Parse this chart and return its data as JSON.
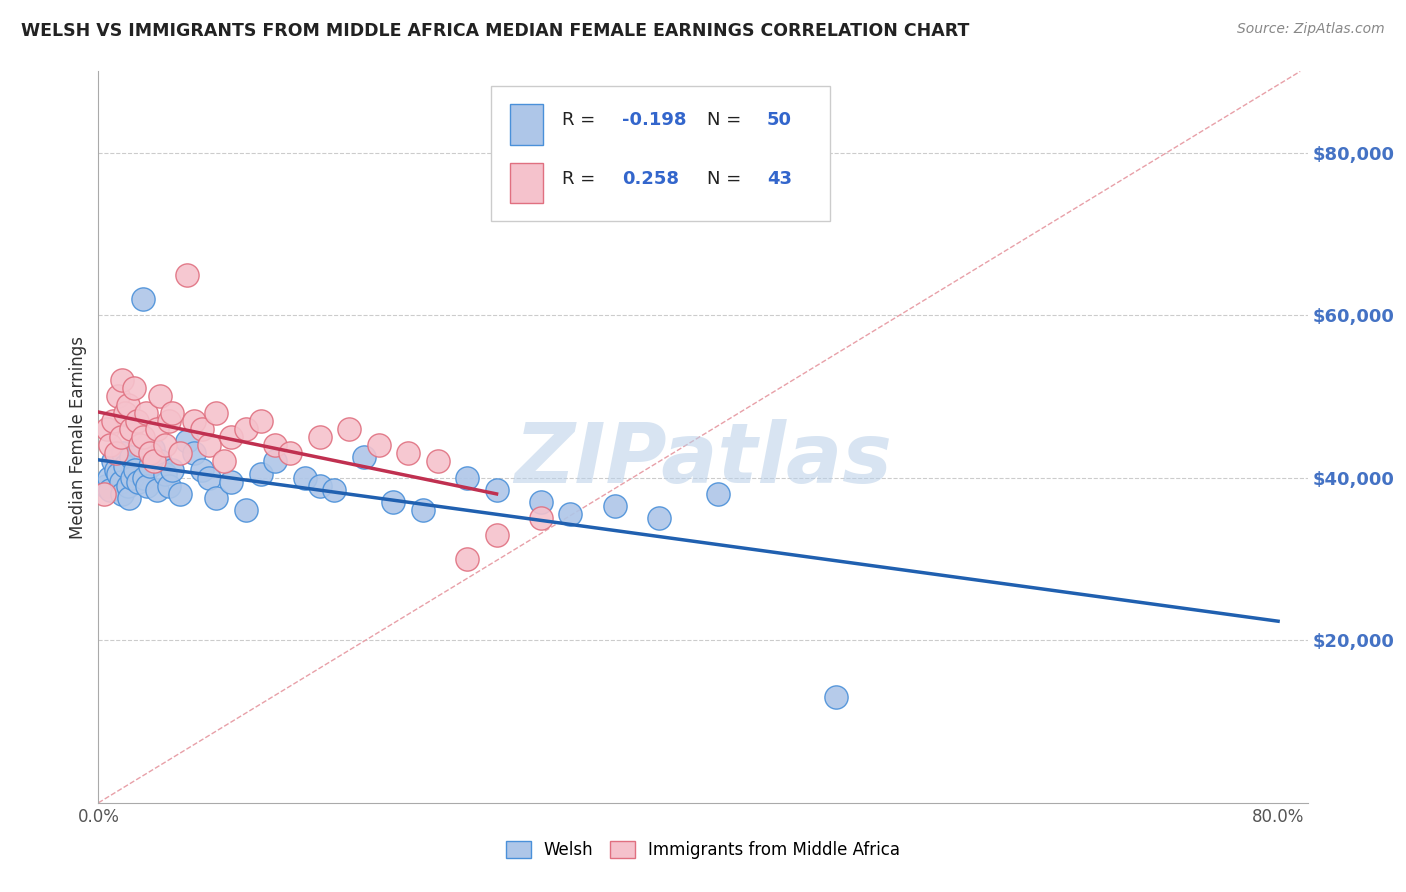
{
  "title": "WELSH VS IMMIGRANTS FROM MIDDLE AFRICA MEDIAN FEMALE EARNINGS CORRELATION CHART",
  "source": "Source: ZipAtlas.com",
  "ylabel": "Median Female Earnings",
  "y_ticks": [
    20000,
    40000,
    60000,
    80000
  ],
  "y_tick_labels": [
    "$20,000",
    "$40,000",
    "$60,000",
    "$80,000"
  ],
  "xlim": [
    0.0,
    0.8
  ],
  "ylim": [
    0,
    90000
  ],
  "welsh_color": "#aec6e8",
  "welsh_edge_color": "#4a90d9",
  "immigrant_color": "#f5c2cc",
  "immigrant_edge_color": "#e07080",
  "welsh_R": -0.198,
  "welsh_N": 50,
  "immigrant_R": 0.258,
  "immigrant_N": 43,
  "legend_label_welsh": "Welsh",
  "legend_label_immigrant": "Immigrants from Middle Africa",
  "watermark": "ZIPatlas",
  "welsh_scatter_x": [
    0.005,
    0.007,
    0.008,
    0.01,
    0.012,
    0.013,
    0.015,
    0.016,
    0.017,
    0.018,
    0.02,
    0.021,
    0.022,
    0.023,
    0.025,
    0.027,
    0.03,
    0.031,
    0.033,
    0.035,
    0.037,
    0.04,
    0.042,
    0.045,
    0.048,
    0.05,
    0.055,
    0.06,
    0.065,
    0.07,
    0.075,
    0.08,
    0.09,
    0.1,
    0.11,
    0.12,
    0.14,
    0.15,
    0.16,
    0.18,
    0.2,
    0.22,
    0.25,
    0.27,
    0.3,
    0.32,
    0.35,
    0.38,
    0.42,
    0.5
  ],
  "welsh_scatter_y": [
    39000,
    40000,
    38500,
    42000,
    41000,
    40500,
    39500,
    38000,
    43000,
    41500,
    39000,
    37500,
    42500,
    40000,
    41000,
    39500,
    62000,
    40000,
    39000,
    41500,
    43500,
    38500,
    42000,
    40500,
    39000,
    41000,
    38000,
    44500,
    43000,
    41000,
    40000,
    37500,
    39500,
    36000,
    40500,
    42000,
    40000,
    39000,
    38500,
    42500,
    37000,
    36000,
    40000,
    38500,
    37000,
    35500,
    36500,
    35000,
    38000,
    13000
  ],
  "immigrant_scatter_x": [
    0.004,
    0.006,
    0.008,
    0.01,
    0.012,
    0.013,
    0.015,
    0.016,
    0.018,
    0.02,
    0.022,
    0.024,
    0.026,
    0.028,
    0.03,
    0.032,
    0.035,
    0.038,
    0.04,
    0.042,
    0.045,
    0.048,
    0.05,
    0.055,
    0.06,
    0.065,
    0.07,
    0.075,
    0.08,
    0.085,
    0.09,
    0.1,
    0.11,
    0.12,
    0.13,
    0.15,
    0.17,
    0.19,
    0.21,
    0.23,
    0.25,
    0.27,
    0.3
  ],
  "immigrant_scatter_y": [
    38000,
    46000,
    44000,
    47000,
    43000,
    50000,
    45000,
    52000,
    48000,
    49000,
    46000,
    51000,
    47000,
    44000,
    45000,
    48000,
    43000,
    42000,
    46000,
    50000,
    44000,
    47000,
    48000,
    43000,
    65000,
    47000,
    46000,
    44000,
    48000,
    42000,
    45000,
    46000,
    47000,
    44000,
    43000,
    45000,
    46000,
    44000,
    43000,
    42000,
    30000,
    33000,
    35000
  ],
  "title_color": "#222222",
  "trend_blue": "#2060b0",
  "trend_pink": "#c03050",
  "diagonal_color": "#e8a0a8",
  "tick_color": "#4472c4",
  "legend_text_color": "#222222",
  "legend_RN_color": "#3366cc"
}
